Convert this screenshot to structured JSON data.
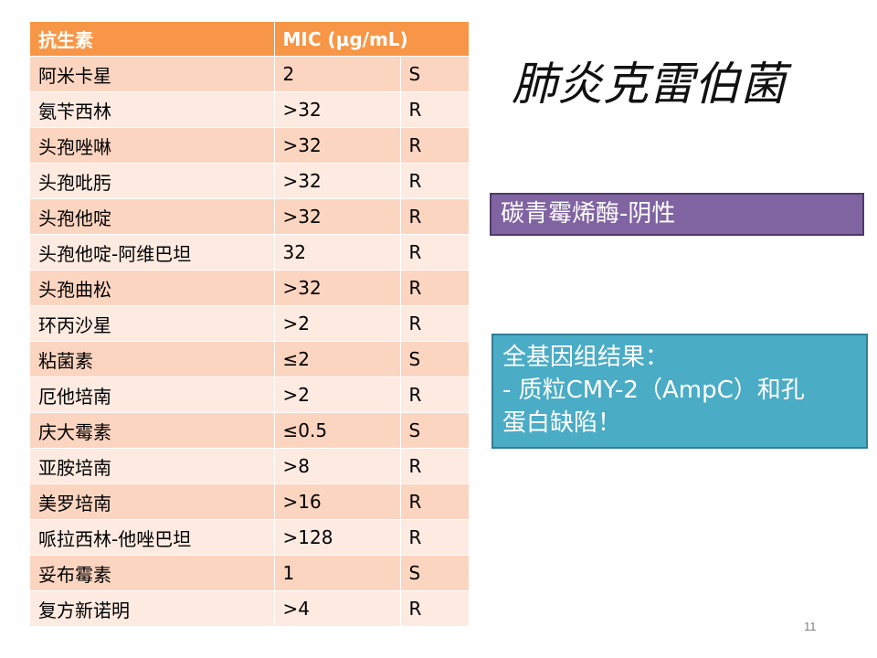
{
  "table": {
    "headers": [
      "抗生素",
      "MIC (μg/mL)"
    ],
    "rows": [
      {
        "drug": "阿米卡星",
        "mic": "2",
        "result": "S"
      },
      {
        "drug": "氨苄西林",
        "mic": ">32",
        "result": "R"
      },
      {
        "drug": "头孢唑啉",
        "mic": ">32",
        "result": "R"
      },
      {
        "drug": "头孢吡肟",
        "mic": ">32",
        "result": "R"
      },
      {
        "drug": "头孢他啶",
        "mic": ">32",
        "result": "R"
      },
      {
        "drug": "头孢他啶-阿维巴坦",
        "mic": "32",
        "result": "R"
      },
      {
        "drug": "头孢曲松",
        "mic": ">32",
        "result": "R"
      },
      {
        "drug": "环丙沙星",
        "mic": ">2",
        "result": "R"
      },
      {
        "drug": "粘菌素",
        "mic": "≤2",
        "result": "S"
      },
      {
        "drug": "厄他培南",
        "mic": ">2",
        "result": "R"
      },
      {
        "drug": "庆大霉素",
        "mic": "≤0.5",
        "result": "S"
      },
      {
        "drug": "亚胺培南",
        "mic": ">8",
        "result": "R"
      },
      {
        "drug": "美罗培南",
        "mic": ">16",
        "result": "R"
      },
      {
        "drug": "哌拉西林-他唑巴坦",
        "mic": ">128",
        "result": "R"
      },
      {
        "drug": "妥布霉素",
        "mic": "1",
        "result": "S"
      },
      {
        "drug": "复方新诺明",
        "mic": ">4",
        "result": "R"
      }
    ]
  },
  "title": "肺炎克雷伯菌",
  "carbapenemase_box": "碳青霉烯酶-阴性",
  "wgs_box": {
    "line1": "全基因组结果：",
    "line2": "- 质粒CMY-2（AmpC）和孔",
    "line3": "蛋白缺陷！"
  },
  "page_number": "11",
  "colors": {
    "header": "#f79646",
    "row_odd": "#fcd5c1",
    "row_even": "#fdeae1",
    "purple_box": "#8064a2",
    "teal_box": "#4bacc6"
  }
}
